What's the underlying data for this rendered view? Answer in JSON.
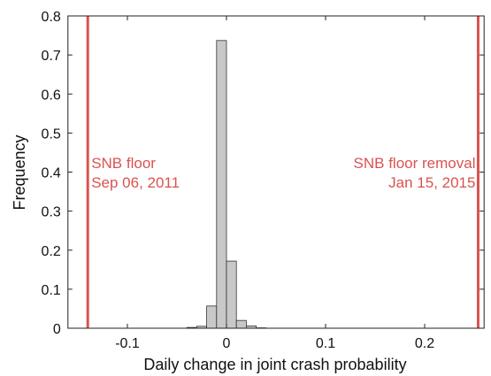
{
  "chart_data": {
    "type": "histogram",
    "xlabel": "Daily change in joint crash probability",
    "ylabel": "Frequency",
    "bins": [
      -0.04,
      -0.03,
      -0.02,
      -0.01,
      0,
      0.01,
      0.02,
      0.03,
      0.04
    ],
    "values": [
      0.002,
      0.005,
      0.057,
      0.737,
      0.172,
      0.02,
      0.006,
      0.001
    ],
    "color": "#c8c8c8",
    "edge_color": "#333333",
    "xlim": [
      -0.16,
      0.26
    ],
    "ylim": [
      0,
      0.8
    ],
    "xticks": [
      -0.1,
      0,
      0.1,
      0.2
    ],
    "yticks": [
      0,
      0.1,
      0.2,
      0.3,
      0.4,
      0.5,
      0.6,
      0.7,
      0.8
    ],
    "annotation_color": "#d9534f",
    "annotations": [
      {
        "x": -0.14,
        "text": [
          "SNB floor",
          "Sep 06, 2011"
        ]
      },
      {
        "x": 0.254,
        "text": [
          "SNB floor removal",
          "Jan 15, 2015"
        ]
      }
    ]
  }
}
